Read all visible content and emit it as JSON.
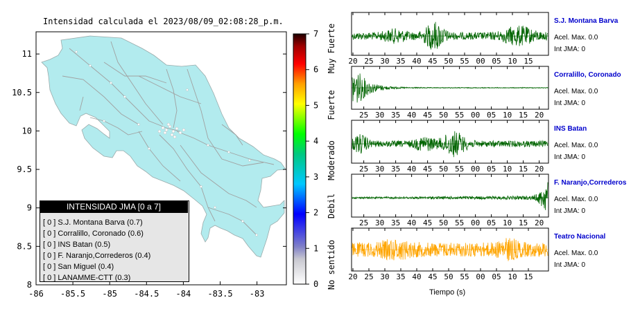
{
  "map": {
    "title": "Intensidad calculada el 2023/08/09_02:08:28_p.m.",
    "x_ticks": [
      "-86",
      "-85.5",
      "-85",
      "-84.5",
      "-84",
      "-83.5",
      "-83"
    ],
    "y_ticks": [
      "11",
      "10.5",
      "10",
      "9.5",
      "9",
      "8.5",
      "8"
    ],
    "land_color": "#b2ebee",
    "road_color": "#9e9e9e"
  },
  "colorbar": {
    "ticks": [
      "0",
      "1",
      "2",
      "3",
      "4",
      "5",
      "6",
      "7"
    ],
    "labels": [
      "No sentido",
      "Debil",
      "Moderado",
      "Fuerte",
      "Muy Fuerte"
    ]
  },
  "legend": {
    "title": "INTENSIDAD JMA [0 a 7]",
    "items": [
      "[ 0 ]  S.J. Montana Barva (0.7)",
      "[ 0 ]  Corralillo, Coronado (0.6)",
      "[ 0 ]  INS Batan (0.5)",
      "[ 0 ]  F. Naranjo,Correderos (0.4)",
      "[ 0 ]  San Miguel (0.4)",
      "[ 0 ]  LANAMME-CTT (0.3)"
    ]
  },
  "chart_data": [
    {
      "type": "line",
      "title": "Intensidad calculada el 2023/08/09_02:08:28_p.m.",
      "note": "map",
      "xlim": [
        -86,
        -82.6
      ],
      "ylim": [
        8,
        11.3
      ]
    },
    {
      "type": "line",
      "station": "S.J. Montana Barva",
      "accel_label": "Acel. Max. 0.0",
      "int_label": "Int JMA: 0",
      "x_tick_labels": [
        "20",
        "25",
        "30",
        "35",
        "40",
        "45",
        "50",
        "55",
        "00",
        "05",
        "10",
        "15"
      ],
      "color": "#006400",
      "baseline": 0.55
    },
    {
      "type": "line",
      "station": "Corralillo, Coronado",
      "accel_label": "Acel. Max. 0.0",
      "int_label": "Int JMA: 0",
      "x_tick_labels": [
        "25",
        "30",
        "35",
        "40",
        "45",
        "50",
        "55",
        "00",
        "05",
        "10",
        "15",
        "20"
      ],
      "color": "#006400",
      "baseline": 0.5
    },
    {
      "type": "line",
      "station": "INS Batan",
      "accel_label": "Acel. Max. 0.0",
      "int_label": "Int JMA: 0",
      "x_tick_labels": [
        "25",
        "30",
        "35",
        "40",
        "45",
        "50",
        "55",
        "00",
        "05",
        "10",
        "15",
        "20"
      ],
      "color": "#006400",
      "baseline": 0.55
    },
    {
      "type": "line",
      "station": "F. Naranjo,Correderos",
      "accel_label": "Acel. Max. 0.0",
      "int_label": "Int JMA: 0",
      "x_tick_labels": [
        "25",
        "30",
        "35",
        "40",
        "45",
        "50",
        "55",
        "00",
        "05",
        "10",
        "15",
        "20"
      ],
      "color": "#006400",
      "baseline": 0.55
    },
    {
      "type": "line",
      "station": "Teatro Nacional",
      "accel_label": "Acel. Max. 0.0",
      "int_label": "Int JMA: 0",
      "x_tick_labels": [
        "20",
        "25",
        "30",
        "35",
        "40",
        "45",
        "50",
        "55",
        "00",
        "05",
        "10",
        "15"
      ],
      "color": "#ffa500",
      "baseline": 0.5
    }
  ],
  "xaxis_label": "Tiempo (s)"
}
